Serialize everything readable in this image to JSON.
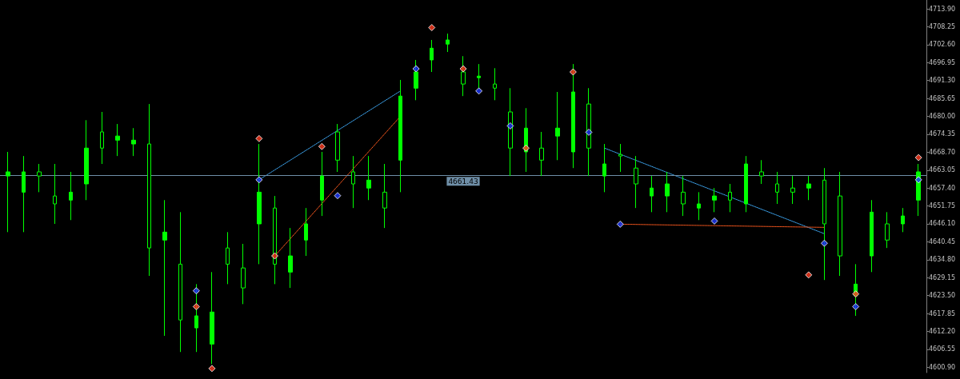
{
  "chart_data": {
    "type": "candlestick",
    "color": "#00ff00",
    "grid": false,
    "tick_labels": "y",
    "categories": [
      null,
      null,
      null,
      null,
      null,
      null,
      null,
      null,
      null,
      null,
      null,
      null,
      null,
      null,
      null,
      null,
      null,
      null,
      null,
      null,
      null,
      null,
      null,
      null,
      null,
      null,
      null,
      null,
      null,
      null,
      null,
      null,
      null,
      null,
      null,
      null,
      null,
      null,
      null,
      null,
      null,
      null,
      null,
      null,
      null,
      null,
      null,
      null,
      null,
      null,
      null,
      null,
      null,
      null,
      null,
      null,
      null,
      null,
      null
    ],
    "ohlc": [
      [
        4661.2,
        4668.8,
        4643.5,
        4662.5
      ],
      [
        4656.1,
        4667.5,
        4643.5,
        4662.5
      ],
      [
        4662.5,
        4665.0,
        4656.1,
        4661.2
      ],
      [
        4654.9,
        4665.0,
        4646.1,
        4652.4
      ],
      [
        4653.6,
        4662.5,
        4647.3,
        4656.1
      ],
      [
        4658.7,
        4678.8,
        4653.6,
        4670.0
      ],
      [
        4675.1,
        4681.4,
        4665.0,
        4670.0
      ],
      [
        4672.5,
        4677.6,
        4667.5,
        4673.8
      ],
      [
        4671.3,
        4676.3,
        4667.5,
        4672.5
      ],
      [
        4671.3,
        4683.9,
        4629.7,
        4638.5
      ],
      [
        4641.0,
        4653.6,
        4610.8,
        4643.5
      ],
      [
        4633.4,
        4649.8,
        4605.7,
        4615.8
      ],
      [
        4613.3,
        4627.1,
        4605.7,
        4617.1
      ],
      [
        4608.2,
        4630.9,
        4601.9,
        4618.3
      ],
      [
        4638.5,
        4643.5,
        4627.1,
        4633.4
      ],
      [
        4632.2,
        4639.8,
        4620.8,
        4625.9
      ],
      [
        4646.1,
        4671.3,
        4633.4,
        4656.1
      ],
      [
        4651.1,
        4654.9,
        4627.1,
        4633.4
      ],
      [
        4630.9,
        4644.8,
        4625.9,
        4636.0
      ],
      [
        4641.0,
        4651.1,
        4636.0,
        4646.1
      ],
      [
        4653.6,
        4668.8,
        4648.6,
        4661.2
      ],
      [
        4675.1,
        4677.6,
        4662.5,
        4666.2
      ],
      [
        4662.5,
        4667.5,
        4651.1,
        4658.7
      ],
      [
        4657.4,
        4667.5,
        4653.6,
        4659.9
      ],
      [
        4656.1,
        4665.0,
        4644.8,
        4651.1
      ],
      [
        4666.2,
        4691.5,
        4656.1,
        4686.4
      ],
      [
        4688.9,
        4697.8,
        4685.1,
        4694.0
      ],
      [
        4697.8,
        4704.1,
        4694.0,
        4701.5
      ],
      [
        4702.8,
        4706.1,
        4700.3,
        4704.1
      ],
      [
        4694.0,
        4699.0,
        4686.4,
        4690.2
      ],
      [
        4692.2,
        4696.5,
        4688.9,
        4692.7
      ],
      [
        4690.2,
        4695.2,
        4685.1,
        4688.9
      ],
      [
        4681.4,
        4688.9,
        4661.2,
        4670.0
      ],
      [
        4668.8,
        4682.6,
        4662.5,
        4676.3
      ],
      [
        4670.0,
        4675.1,
        4661.2,
        4666.2
      ],
      [
        4673.8,
        4687.7,
        4666.2,
        4676.3
      ],
      [
        4668.8,
        4696.5,
        4663.7,
        4687.7
      ],
      [
        4683.9,
        4688.9,
        4661.2,
        4670.0
      ],
      [
        4661.2,
        4671.3,
        4656.1,
        4665.0
      ],
      [
        4668.0,
        4671.3,
        4662.5,
        4667.5
      ],
      [
        4663.7,
        4667.5,
        4651.1,
        4658.7
      ],
      [
        4654.9,
        4661.2,
        4649.8,
        4657.4
      ],
      [
        4654.9,
        4662.5,
        4649.8,
        4658.7
      ],
      [
        4656.1,
        4661.2,
        4648.6,
        4652.4
      ],
      [
        4651.1,
        4656.1,
        4647.3,
        4652.4
      ],
      [
        4653.6,
        4657.4,
        4649.8,
        4654.9
      ],
      [
        4656.1,
        4658.7,
        4649.8,
        4653.6
      ],
      [
        4652.4,
        4667.5,
        4649.8,
        4665.0
      ],
      [
        4662.5,
        4666.2,
        4658.7,
        4661.2
      ],
      [
        4658.7,
        4662.5,
        4652.4,
        4656.1
      ],
      [
        4657.4,
        4661.2,
        4652.4,
        4656.1
      ],
      [
        4657.4,
        4661.2,
        4653.6,
        4658.7
      ],
      [
        4659.9,
        4663.7,
        4628.4,
        4646.1
      ],
      [
        4654.9,
        4662.5,
        4629.7,
        4636.0
      ],
      [
        4623.4,
        4633.4,
        4617.1,
        4627.1
      ],
      [
        4636.0,
        4653.6,
        4630.9,
        4649.8
      ],
      [
        4646.1,
        4649.8,
        4638.5,
        4641.0
      ],
      [
        4646.1,
        4651.1,
        4643.5,
        4648.6
      ],
      [
        4653.6,
        4665.0,
        4648.6,
        4662.5
      ]
    ],
    "series": [
      {
        "type": "scatter",
        "color": "#ff3b1f",
        "marker": "diamond",
        "values": [
          null,
          null,
          null,
          null,
          null,
          null,
          null,
          null,
          null,
          null,
          null,
          null,
          4620,
          4600.5,
          null,
          null,
          4673,
          4636,
          null,
          null,
          4670.5,
          null,
          null,
          null,
          null,
          null,
          null,
          4708,
          null,
          4695,
          null,
          null,
          null,
          4670,
          null,
          null,
          4694,
          null,
          null,
          null,
          null,
          null,
          null,
          null,
          null,
          null,
          null,
          null,
          null,
          null,
          null,
          4630,
          null,
          null,
          4624,
          null,
          null,
          null,
          4667
        ]
      },
      {
        "type": "scatter",
        "color": "#1f3bff",
        "marker": "diamond",
        "values": [
          null,
          null,
          null,
          null,
          null,
          null,
          null,
          null,
          null,
          null,
          null,
          null,
          4625,
          null,
          null,
          null,
          4660,
          null,
          null,
          null,
          null,
          4655,
          null,
          null,
          null,
          null,
          4695,
          null,
          null,
          null,
          4688,
          null,
          4677,
          null,
          null,
          null,
          null,
          4675,
          null,
          4646,
          null,
          null,
          null,
          null,
          null,
          4647,
          null,
          null,
          null,
          null,
          null,
          null,
          4640,
          null,
          4620,
          null,
          null,
          null,
          4660
        ]
      },
      {
        "type": "line",
        "color": "#3fa9f5",
        "line_style": "dotted",
        "marker": "none",
        "values": [
          null,
          null,
          null,
          null,
          null,
          null,
          null,
          null,
          null,
          null,
          null,
          null,
          null,
          null,
          null,
          null,
          4660,
          null,
          null,
          null,
          null,
          null,
          null,
          null,
          null,
          4688,
          null,
          null,
          null,
          null,
          null,
          null,
          null,
          null,
          null,
          null,
          null,
          null,
          null,
          null,
          null,
          null,
          null,
          null,
          null,
          null,
          null,
          null,
          null,
          null,
          null,
          null,
          null,
          null,
          null,
          null,
          null,
          null,
          null
        ]
      },
      {
        "type": "line",
        "color": "#ff5a1f",
        "line_style": "dotted",
        "marker": "none",
        "values": [
          null,
          null,
          null,
          null,
          null,
          null,
          null,
          null,
          null,
          null,
          null,
          null,
          null,
          null,
          null,
          null,
          null,
          4636,
          null,
          null,
          null,
          null,
          null,
          null,
          null,
          4680,
          null,
          null,
          null,
          null,
          null,
          null,
          null,
          null,
          null,
          null,
          null,
          null,
          null,
          null,
          null,
          null,
          null,
          null,
          null,
          null,
          null,
          null,
          null,
          null,
          null,
          null,
          null,
          null,
          null,
          null,
          null,
          null,
          null
        ]
      },
      {
        "type": "line",
        "color": "#3fa9f5",
        "line_style": "dotted",
        "marker": "none",
        "values": [
          null,
          null,
          null,
          null,
          null,
          null,
          null,
          null,
          null,
          null,
          null,
          null,
          null,
          null,
          null,
          null,
          null,
          null,
          null,
          null,
          null,
          null,
          null,
          null,
          null,
          null,
          null,
          null,
          null,
          null,
          null,
          null,
          null,
          null,
          null,
          null,
          null,
          null,
          4670,
          null,
          null,
          null,
          null,
          null,
          null,
          null,
          null,
          null,
          null,
          null,
          null,
          null,
          4643,
          null,
          null,
          null,
          null,
          null,
          null
        ]
      },
      {
        "type": "line",
        "color": "#ff5a1f",
        "line_style": "dotted",
        "marker": "none",
        "values": [
          null,
          null,
          null,
          null,
          null,
          null,
          null,
          null,
          null,
          null,
          null,
          null,
          null,
          null,
          null,
          null,
          null,
          null,
          null,
          null,
          null,
          null,
          null,
          null,
          null,
          null,
          null,
          null,
          null,
          null,
          null,
          null,
          null,
          null,
          null,
          null,
          null,
          null,
          null,
          4646,
          null,
          null,
          null,
          null,
          null,
          null,
          null,
          null,
          null,
          null,
          null,
          null,
          4645,
          null,
          null,
          null,
          null,
          null,
          null
        ]
      }
    ],
    "ref_lines": [
      {
        "axis": "y",
        "value": 4661.43,
        "label": "4661.43",
        "color": "#6f8fa8",
        "line_style": "solid"
      }
    ],
    "ylim": [
      4599.2,
      4716.7
    ],
    "yticks": [
      {
        "value": 4713.9,
        "label": "4713.90"
      },
      {
        "value": 4708.25,
        "label": "4708.25"
      },
      {
        "value": 4702.6,
        "label": "4702.60"
      },
      {
        "value": 4696.95,
        "label": "4696.95"
      },
      {
        "value": 4691.3,
        "label": "4691.30"
      },
      {
        "value": 4685.65,
        "label": "4685.65"
      },
      {
        "value": 4680,
        "label": "4680.00"
      },
      {
        "value": 4674.35,
        "label": "4674.35"
      },
      {
        "value": 4668.7,
        "label": "4668.70"
      },
      {
        "value": 4663.05,
        "label": "4663.05"
      },
      {
        "value": 4657.4,
        "label": "4657.40"
      },
      {
        "value": 4651.75,
        "label": "4651.75"
      },
      {
        "value": 4646.1,
        "label": "4646.10"
      },
      {
        "value": 4640.45,
        "label": "4640.45"
      },
      {
        "value": 4634.8,
        "label": "4634.80"
      },
      {
        "value": 4629.15,
        "label": "4629.15"
      },
      {
        "value": 4623.5,
        "label": "4623.50"
      },
      {
        "value": 4617.85,
        "label": "4617.85"
      },
      {
        "value": 4612.2,
        "label": "4612.20"
      },
      {
        "value": 4606.55,
        "label": "4606.55"
      },
      {
        "value": 4600.9,
        "label": "4600.90"
      }
    ]
  }
}
